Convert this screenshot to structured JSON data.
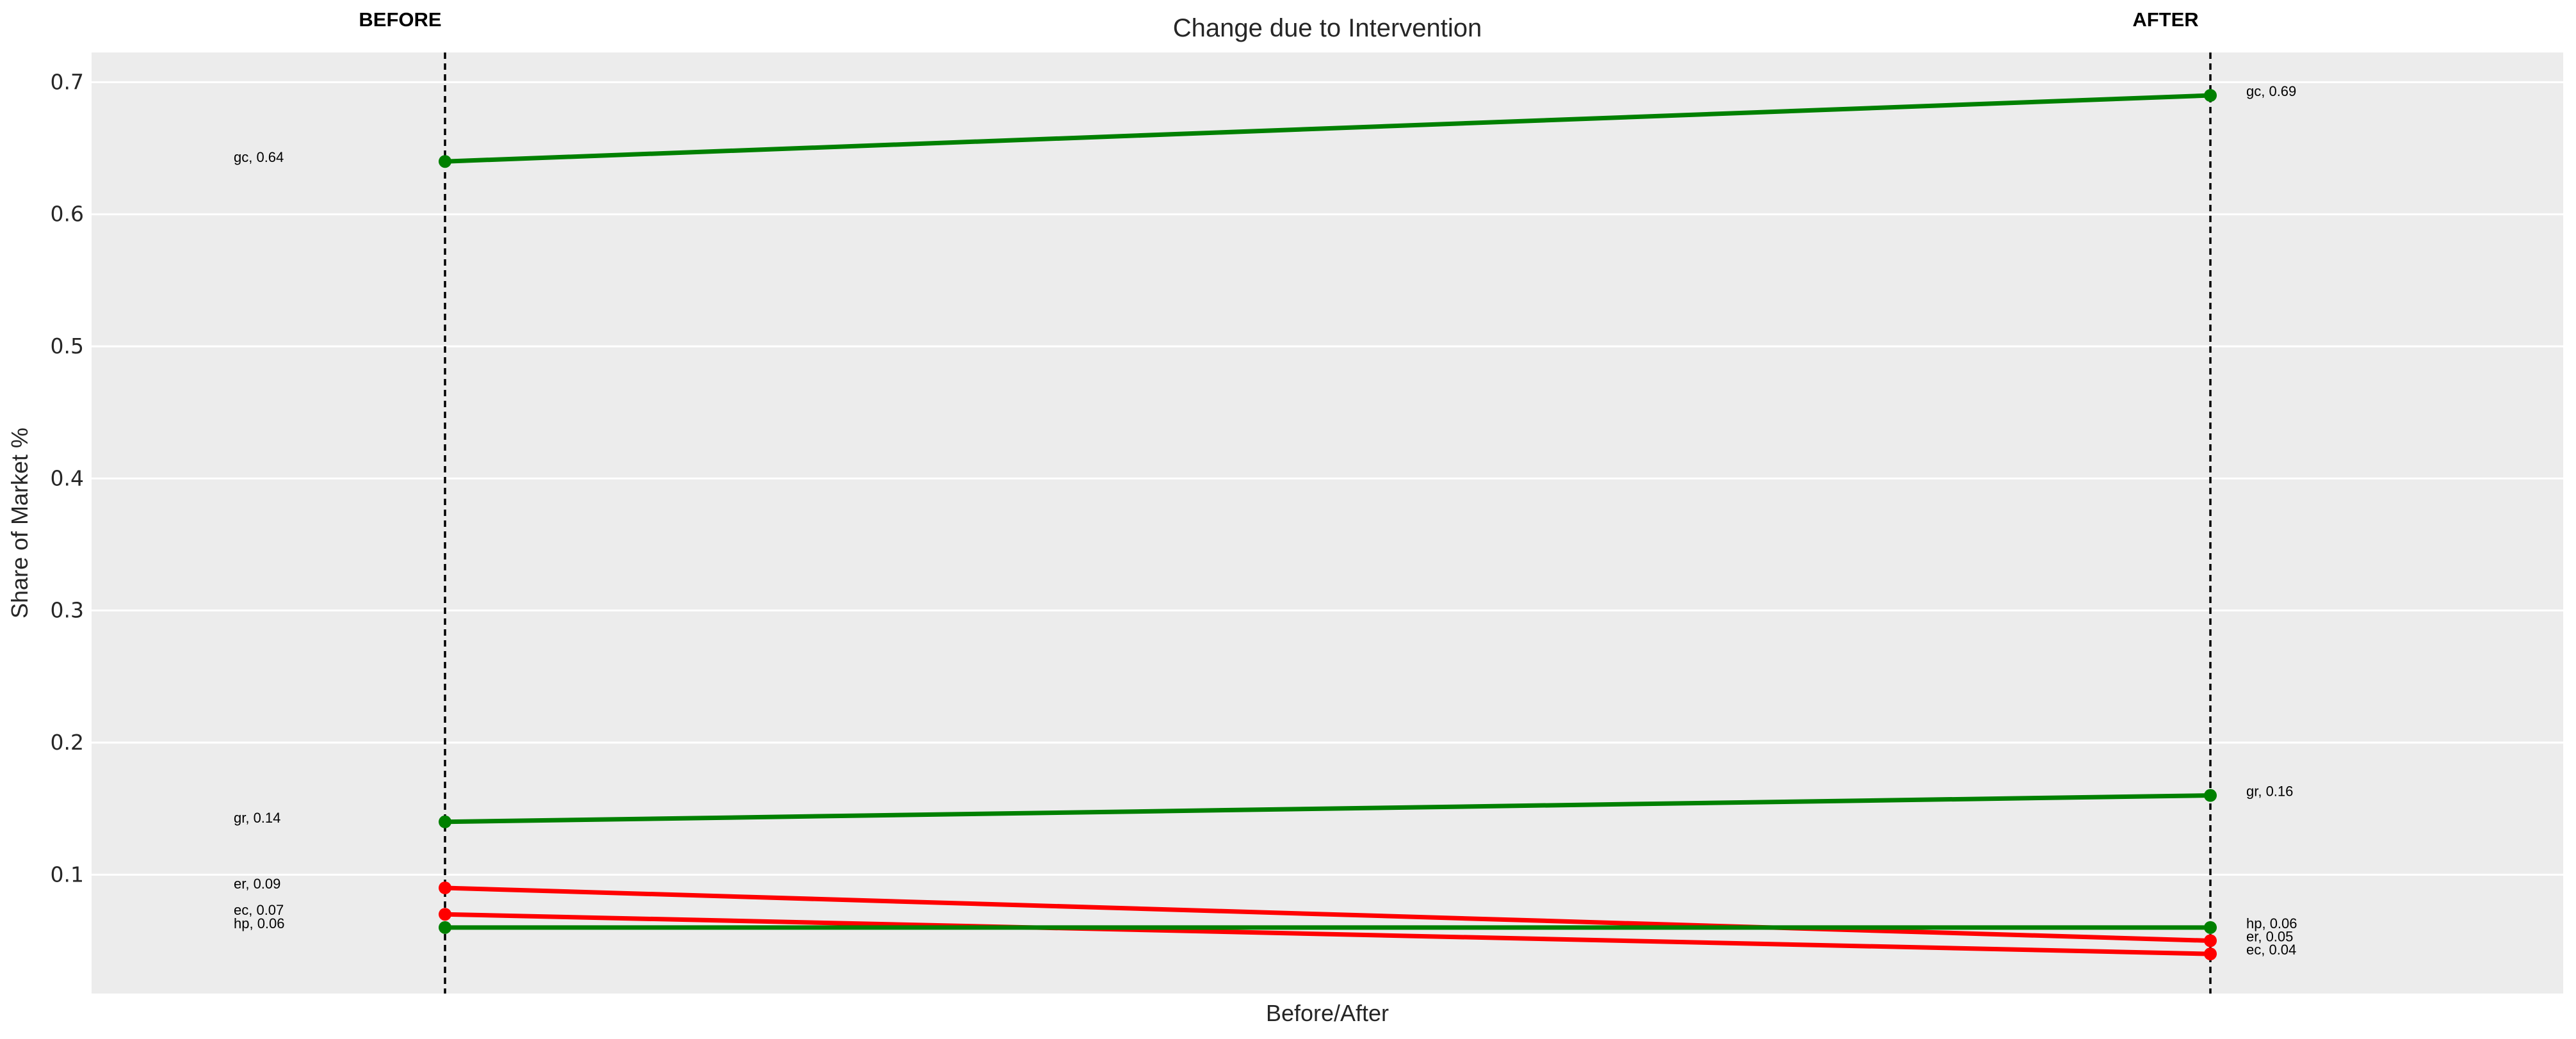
{
  "chart_data": {
    "type": "line",
    "variant": "slope-chart",
    "title": "Change due to Intervention",
    "xlabel": "Before/After",
    "ylabel": "Share of Market %",
    "column_headers": [
      "BEFORE",
      "AFTER"
    ],
    "grid": true,
    "legend": false,
    "ylim": [
      0.01,
      0.7225
    ],
    "ytick_values": [
      0.1,
      0.2,
      0.3,
      0.4,
      0.5,
      0.6,
      0.7
    ],
    "ytick_labels": [
      "0.1",
      "0.2",
      "0.3",
      "0.4",
      "0.5",
      "0.6",
      "0.7"
    ],
    "plot_background_color": "#ececec",
    "gridline_color": "#ffffff",
    "column_line_color": "#000000",
    "increase_color": "#008000",
    "decrease_color": "#ff0000",
    "series": [
      {
        "name": "gc",
        "color": "#008000",
        "values": [
          0.64,
          0.69
        ],
        "point_labels": [
          "gc, 0.64",
          "gc, 0.69"
        ]
      },
      {
        "name": "gr",
        "color": "#008000",
        "values": [
          0.14,
          0.16
        ],
        "point_labels": [
          "gr, 0.14",
          "gr, 0.16"
        ]
      },
      {
        "name": "er",
        "color": "#ff0000",
        "values": [
          0.09,
          0.05
        ],
        "point_labels": [
          "er, 0.09",
          "er, 0.05"
        ]
      },
      {
        "name": "ec",
        "color": "#ff0000",
        "values": [
          0.07,
          0.04
        ],
        "point_labels": [
          "ec, 0.07",
          "ec, 0.04"
        ]
      },
      {
        "name": "hp",
        "color": "#008000",
        "values": [
          0.06,
          0.06
        ],
        "point_labels": [
          "hp, 0.06",
          "hp, 0.06"
        ]
      }
    ]
  }
}
